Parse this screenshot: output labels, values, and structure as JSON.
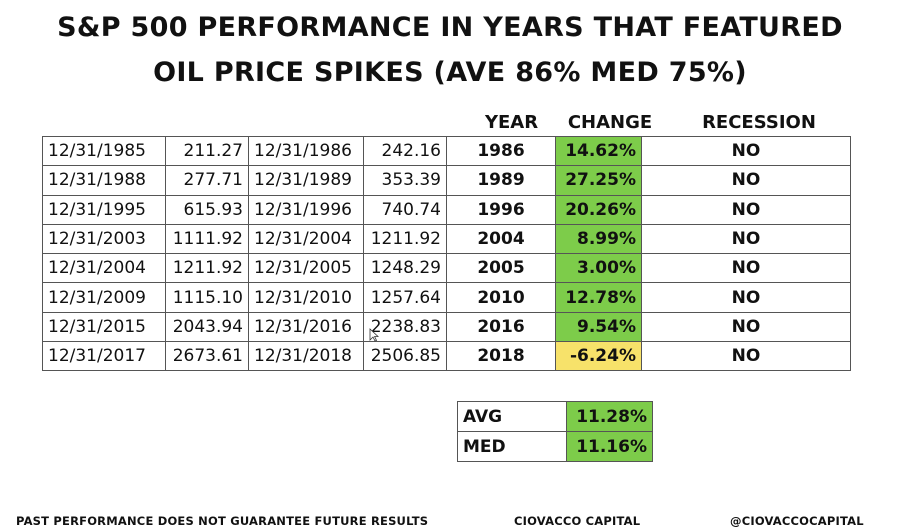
{
  "title": {
    "line1": "S&P 500 PERFORMANCE IN YEARS THAT FEATURED",
    "line2": "OIL PRICE SPIKES (AVE 86% MED 75%)"
  },
  "headers": {
    "year": "YEAR",
    "change": "CHANGE",
    "recession": "RECESSION"
  },
  "colors": {
    "positive": "#7dcc4a",
    "negative": "#f7e26a"
  },
  "rows": [
    {
      "start_date": "12/31/1985",
      "start_value": "211.27",
      "end_date": "12/31/1986",
      "end_value": "242.16",
      "year": "1986",
      "change": "14.62%",
      "recession": "NO",
      "sign": "positive"
    },
    {
      "start_date": "12/31/1988",
      "start_value": "277.71",
      "end_date": "12/31/1989",
      "end_value": "353.39",
      "year": "1989",
      "change": "27.25%",
      "recession": "NO",
      "sign": "positive"
    },
    {
      "start_date": "12/31/1995",
      "start_value": "615.93",
      "end_date": "12/31/1996",
      "end_value": "740.74",
      "year": "1996",
      "change": "20.26%",
      "recession": "NO",
      "sign": "positive"
    },
    {
      "start_date": "12/31/2003",
      "start_value": "1111.92",
      "end_date": "12/31/2004",
      "end_value": "1211.92",
      "year": "2004",
      "change": "8.99%",
      "recession": "NO",
      "sign": "positive"
    },
    {
      "start_date": "12/31/2004",
      "start_value": "1211.92",
      "end_date": "12/31/2005",
      "end_value": "1248.29",
      "year": "2005",
      "change": "3.00%",
      "recession": "NO",
      "sign": "positive"
    },
    {
      "start_date": "12/31/2009",
      "start_value": "1115.10",
      "end_date": "12/31/2010",
      "end_value": "1257.64",
      "year": "2010",
      "change": "12.78%",
      "recession": "NO",
      "sign": "positive"
    },
    {
      "start_date": "12/31/2015",
      "start_value": "2043.94",
      "end_date": "12/31/2016",
      "end_value": "2238.83",
      "year": "2016",
      "change": "9.54%",
      "recession": "NO",
      "sign": "positive"
    },
    {
      "start_date": "12/31/2017",
      "start_value": "2673.61",
      "end_date": "12/31/2018",
      "end_value": "2506.85",
      "year": "2018",
      "change": "-6.24%",
      "recession": "NO",
      "sign": "negative"
    }
  ],
  "stats": [
    {
      "label": "AVG",
      "value": "11.28%"
    },
    {
      "label": "MED",
      "value": "11.16%"
    }
  ],
  "footer": {
    "disclaimer": "PAST PERFORMANCE DOES NOT GUARANTEE FUTURE RESULTS",
    "brand": "CIOVACCO CAPITAL",
    "handle": "@CIOVACCOCAPITAL"
  },
  "icons": {
    "cursor": "mouse-pointer-icon"
  }
}
